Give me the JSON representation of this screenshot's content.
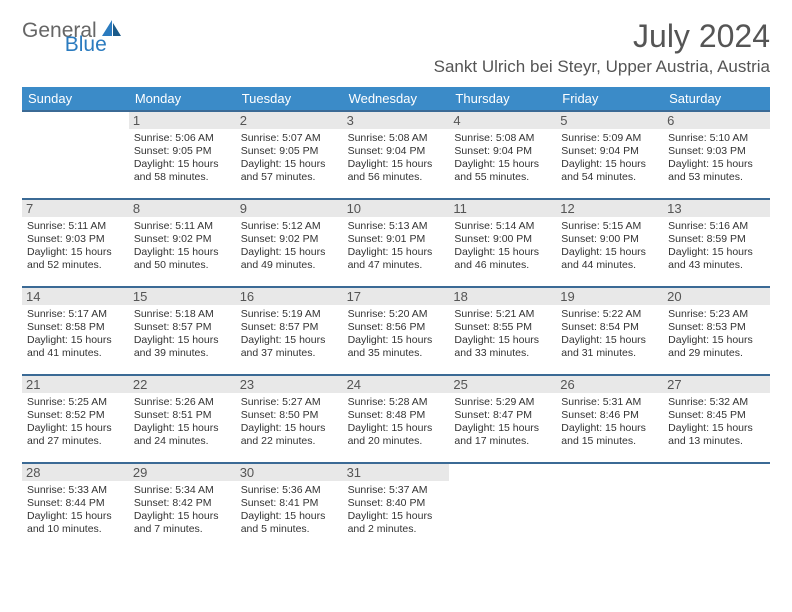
{
  "logo": {
    "text1": "General",
    "text2": "Blue"
  },
  "title": "July 2024",
  "location": "Sankt Ulrich bei Steyr, Upper Austria, Austria",
  "colors": {
    "header_bg": "#3b8bc8",
    "header_text": "#ffffff",
    "week_border": "#3b6a95",
    "daynum_bg": "#e8e8e8",
    "text": "#333333",
    "logo_gray": "#666666",
    "logo_blue": "#2b7bbf"
  },
  "day_labels": [
    "Sunday",
    "Monday",
    "Tuesday",
    "Wednesday",
    "Thursday",
    "Friday",
    "Saturday"
  ],
  "weeks": [
    [
      {
        "n": "",
        "sunrise": "",
        "sunset": "",
        "day": ""
      },
      {
        "n": "1",
        "sunrise": "Sunrise: 5:06 AM",
        "sunset": "Sunset: 9:05 PM",
        "day": "Daylight: 15 hours and 58 minutes."
      },
      {
        "n": "2",
        "sunrise": "Sunrise: 5:07 AM",
        "sunset": "Sunset: 9:05 PM",
        "day": "Daylight: 15 hours and 57 minutes."
      },
      {
        "n": "3",
        "sunrise": "Sunrise: 5:08 AM",
        "sunset": "Sunset: 9:04 PM",
        "day": "Daylight: 15 hours and 56 minutes."
      },
      {
        "n": "4",
        "sunrise": "Sunrise: 5:08 AM",
        "sunset": "Sunset: 9:04 PM",
        "day": "Daylight: 15 hours and 55 minutes."
      },
      {
        "n": "5",
        "sunrise": "Sunrise: 5:09 AM",
        "sunset": "Sunset: 9:04 PM",
        "day": "Daylight: 15 hours and 54 minutes."
      },
      {
        "n": "6",
        "sunrise": "Sunrise: 5:10 AM",
        "sunset": "Sunset: 9:03 PM",
        "day": "Daylight: 15 hours and 53 minutes."
      }
    ],
    [
      {
        "n": "7",
        "sunrise": "Sunrise: 5:11 AM",
        "sunset": "Sunset: 9:03 PM",
        "day": "Daylight: 15 hours and 52 minutes."
      },
      {
        "n": "8",
        "sunrise": "Sunrise: 5:11 AM",
        "sunset": "Sunset: 9:02 PM",
        "day": "Daylight: 15 hours and 50 minutes."
      },
      {
        "n": "9",
        "sunrise": "Sunrise: 5:12 AM",
        "sunset": "Sunset: 9:02 PM",
        "day": "Daylight: 15 hours and 49 minutes."
      },
      {
        "n": "10",
        "sunrise": "Sunrise: 5:13 AM",
        "sunset": "Sunset: 9:01 PM",
        "day": "Daylight: 15 hours and 47 minutes."
      },
      {
        "n": "11",
        "sunrise": "Sunrise: 5:14 AM",
        "sunset": "Sunset: 9:00 PM",
        "day": "Daylight: 15 hours and 46 minutes."
      },
      {
        "n": "12",
        "sunrise": "Sunrise: 5:15 AM",
        "sunset": "Sunset: 9:00 PM",
        "day": "Daylight: 15 hours and 44 minutes."
      },
      {
        "n": "13",
        "sunrise": "Sunrise: 5:16 AM",
        "sunset": "Sunset: 8:59 PM",
        "day": "Daylight: 15 hours and 43 minutes."
      }
    ],
    [
      {
        "n": "14",
        "sunrise": "Sunrise: 5:17 AM",
        "sunset": "Sunset: 8:58 PM",
        "day": "Daylight: 15 hours and 41 minutes."
      },
      {
        "n": "15",
        "sunrise": "Sunrise: 5:18 AM",
        "sunset": "Sunset: 8:57 PM",
        "day": "Daylight: 15 hours and 39 minutes."
      },
      {
        "n": "16",
        "sunrise": "Sunrise: 5:19 AM",
        "sunset": "Sunset: 8:57 PM",
        "day": "Daylight: 15 hours and 37 minutes."
      },
      {
        "n": "17",
        "sunrise": "Sunrise: 5:20 AM",
        "sunset": "Sunset: 8:56 PM",
        "day": "Daylight: 15 hours and 35 minutes."
      },
      {
        "n": "18",
        "sunrise": "Sunrise: 5:21 AM",
        "sunset": "Sunset: 8:55 PM",
        "day": "Daylight: 15 hours and 33 minutes."
      },
      {
        "n": "19",
        "sunrise": "Sunrise: 5:22 AM",
        "sunset": "Sunset: 8:54 PM",
        "day": "Daylight: 15 hours and 31 minutes."
      },
      {
        "n": "20",
        "sunrise": "Sunrise: 5:23 AM",
        "sunset": "Sunset: 8:53 PM",
        "day": "Daylight: 15 hours and 29 minutes."
      }
    ],
    [
      {
        "n": "21",
        "sunrise": "Sunrise: 5:25 AM",
        "sunset": "Sunset: 8:52 PM",
        "day": "Daylight: 15 hours and 27 minutes."
      },
      {
        "n": "22",
        "sunrise": "Sunrise: 5:26 AM",
        "sunset": "Sunset: 8:51 PM",
        "day": "Daylight: 15 hours and 24 minutes."
      },
      {
        "n": "23",
        "sunrise": "Sunrise: 5:27 AM",
        "sunset": "Sunset: 8:50 PM",
        "day": "Daylight: 15 hours and 22 minutes."
      },
      {
        "n": "24",
        "sunrise": "Sunrise: 5:28 AM",
        "sunset": "Sunset: 8:48 PM",
        "day": "Daylight: 15 hours and 20 minutes."
      },
      {
        "n": "25",
        "sunrise": "Sunrise: 5:29 AM",
        "sunset": "Sunset: 8:47 PM",
        "day": "Daylight: 15 hours and 17 minutes."
      },
      {
        "n": "26",
        "sunrise": "Sunrise: 5:31 AM",
        "sunset": "Sunset: 8:46 PM",
        "day": "Daylight: 15 hours and 15 minutes."
      },
      {
        "n": "27",
        "sunrise": "Sunrise: 5:32 AM",
        "sunset": "Sunset: 8:45 PM",
        "day": "Daylight: 15 hours and 13 minutes."
      }
    ],
    [
      {
        "n": "28",
        "sunrise": "Sunrise: 5:33 AM",
        "sunset": "Sunset: 8:44 PM",
        "day": "Daylight: 15 hours and 10 minutes."
      },
      {
        "n": "29",
        "sunrise": "Sunrise: 5:34 AM",
        "sunset": "Sunset: 8:42 PM",
        "day": "Daylight: 15 hours and 7 minutes."
      },
      {
        "n": "30",
        "sunrise": "Sunrise: 5:36 AM",
        "sunset": "Sunset: 8:41 PM",
        "day": "Daylight: 15 hours and 5 minutes."
      },
      {
        "n": "31",
        "sunrise": "Sunrise: 5:37 AM",
        "sunset": "Sunset: 8:40 PM",
        "day": "Daylight: 15 hours and 2 minutes."
      },
      {
        "n": "",
        "sunrise": "",
        "sunset": "",
        "day": ""
      },
      {
        "n": "",
        "sunrise": "",
        "sunset": "",
        "day": ""
      },
      {
        "n": "",
        "sunrise": "",
        "sunset": "",
        "day": ""
      }
    ]
  ]
}
